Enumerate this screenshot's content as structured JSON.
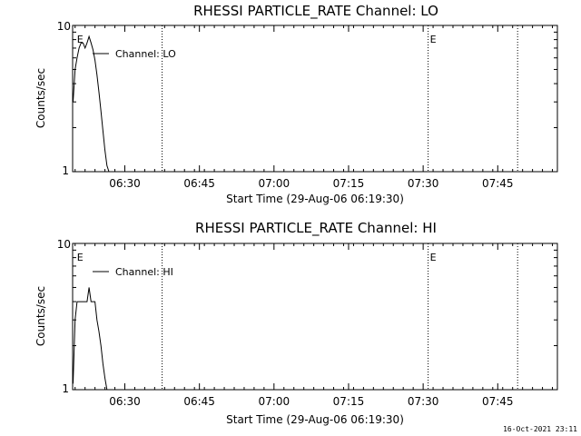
{
  "page": {
    "timestamp": "16-Oct-2021 23:11"
  },
  "chart_data": [
    {
      "type": "line",
      "title": "RHESSI PARTICLE_RATE Channel: LO",
      "xlabel": "Start Time (29-Aug-06 06:19:30)",
      "ylabel": "Counts/sec",
      "y_scale": "log",
      "ylim": [
        1,
        10
      ],
      "y_tick_labels": [
        "1",
        "10"
      ],
      "x_tick_labels": [
        "06:30",
        "06:45",
        "07:00",
        "07:15",
        "07:30",
        "07:45"
      ],
      "x_tick_minutes": [
        30,
        45,
        60,
        75,
        90,
        105
      ],
      "x_minor_minutes": [
        18,
        20,
        22,
        24,
        26,
        28,
        32,
        34,
        36,
        38,
        40,
        42,
        44,
        46,
        48,
        50,
        52,
        54,
        56,
        58,
        62,
        64,
        66,
        68,
        70,
        72,
        74,
        76,
        78,
        80,
        82,
        84,
        86,
        88,
        92,
        94,
        96,
        98,
        100,
        102,
        104,
        106,
        108,
        110,
        112,
        114,
        116
      ],
      "xlim": [
        19.5,
        117
      ],
      "legend": "top-left",
      "event_markers": [
        {
          "label": "E",
          "minute": 20,
          "style": "label"
        },
        {
          "label": "",
          "minute": 37.5,
          "style": "dotted"
        },
        {
          "label": "E",
          "minute": 91,
          "style": "dotted"
        },
        {
          "label": "",
          "minute": 109,
          "style": "dotted"
        }
      ],
      "series": [
        {
          "name": "Channel: LO",
          "x": [
            19.6,
            20.0,
            20.4,
            20.8,
            21.2,
            21.6,
            22.0,
            22.4,
            22.8,
            23.2,
            23.6,
            24.0,
            24.4,
            24.8,
            25.2,
            25.6,
            26.0,
            26.4,
            26.8
          ],
          "y": [
            3.0,
            5.0,
            6.0,
            7.0,
            7.6,
            7.6,
            7.0,
            7.6,
            8.4,
            7.6,
            6.8,
            5.8,
            4.6,
            3.5,
            2.6,
            1.9,
            1.4,
            1.1,
            1.0
          ]
        }
      ]
    },
    {
      "type": "line",
      "title": "RHESSI PARTICLE_RATE Channel: HI",
      "xlabel": "Start Time (29-Aug-06 06:19:30)",
      "ylabel": "Counts/sec",
      "y_scale": "log",
      "ylim": [
        1,
        10
      ],
      "y_tick_labels": [
        "1",
        "10"
      ],
      "x_tick_labels": [
        "06:30",
        "06:45",
        "07:00",
        "07:15",
        "07:30",
        "07:45"
      ],
      "x_tick_minutes": [
        30,
        45,
        60,
        75,
        90,
        105
      ],
      "x_minor_minutes": [
        18,
        20,
        22,
        24,
        26,
        28,
        32,
        34,
        36,
        38,
        40,
        42,
        44,
        46,
        48,
        50,
        52,
        54,
        56,
        58,
        62,
        64,
        66,
        68,
        70,
        72,
        74,
        76,
        78,
        80,
        82,
        84,
        86,
        88,
        92,
        94,
        96,
        98,
        100,
        102,
        104,
        106,
        108,
        110,
        112,
        114,
        116
      ],
      "xlim": [
        19.5,
        117
      ],
      "legend": "top-left",
      "event_markers": [
        {
          "label": "E",
          "minute": 20,
          "style": "label"
        },
        {
          "label": "",
          "minute": 37.5,
          "style": "dotted"
        },
        {
          "label": "E",
          "minute": 91,
          "style": "dotted"
        },
        {
          "label": "",
          "minute": 109,
          "style": "dotted"
        }
      ],
      "series": [
        {
          "name": "Channel: HI",
          "x": [
            19.6,
            20.0,
            20.4,
            20.8,
            21.2,
            21.6,
            22.0,
            22.4,
            22.8,
            23.2,
            23.6,
            24.0,
            24.4,
            24.8,
            25.2,
            25.6,
            26.0,
            26.4
          ],
          "y": [
            1.1,
            3.0,
            4.0,
            4.0,
            4.0,
            4.0,
            4.0,
            4.0,
            5.0,
            4.0,
            4.0,
            4.0,
            3.0,
            2.5,
            2.0,
            1.5,
            1.2,
            1.0
          ]
        }
      ]
    }
  ]
}
